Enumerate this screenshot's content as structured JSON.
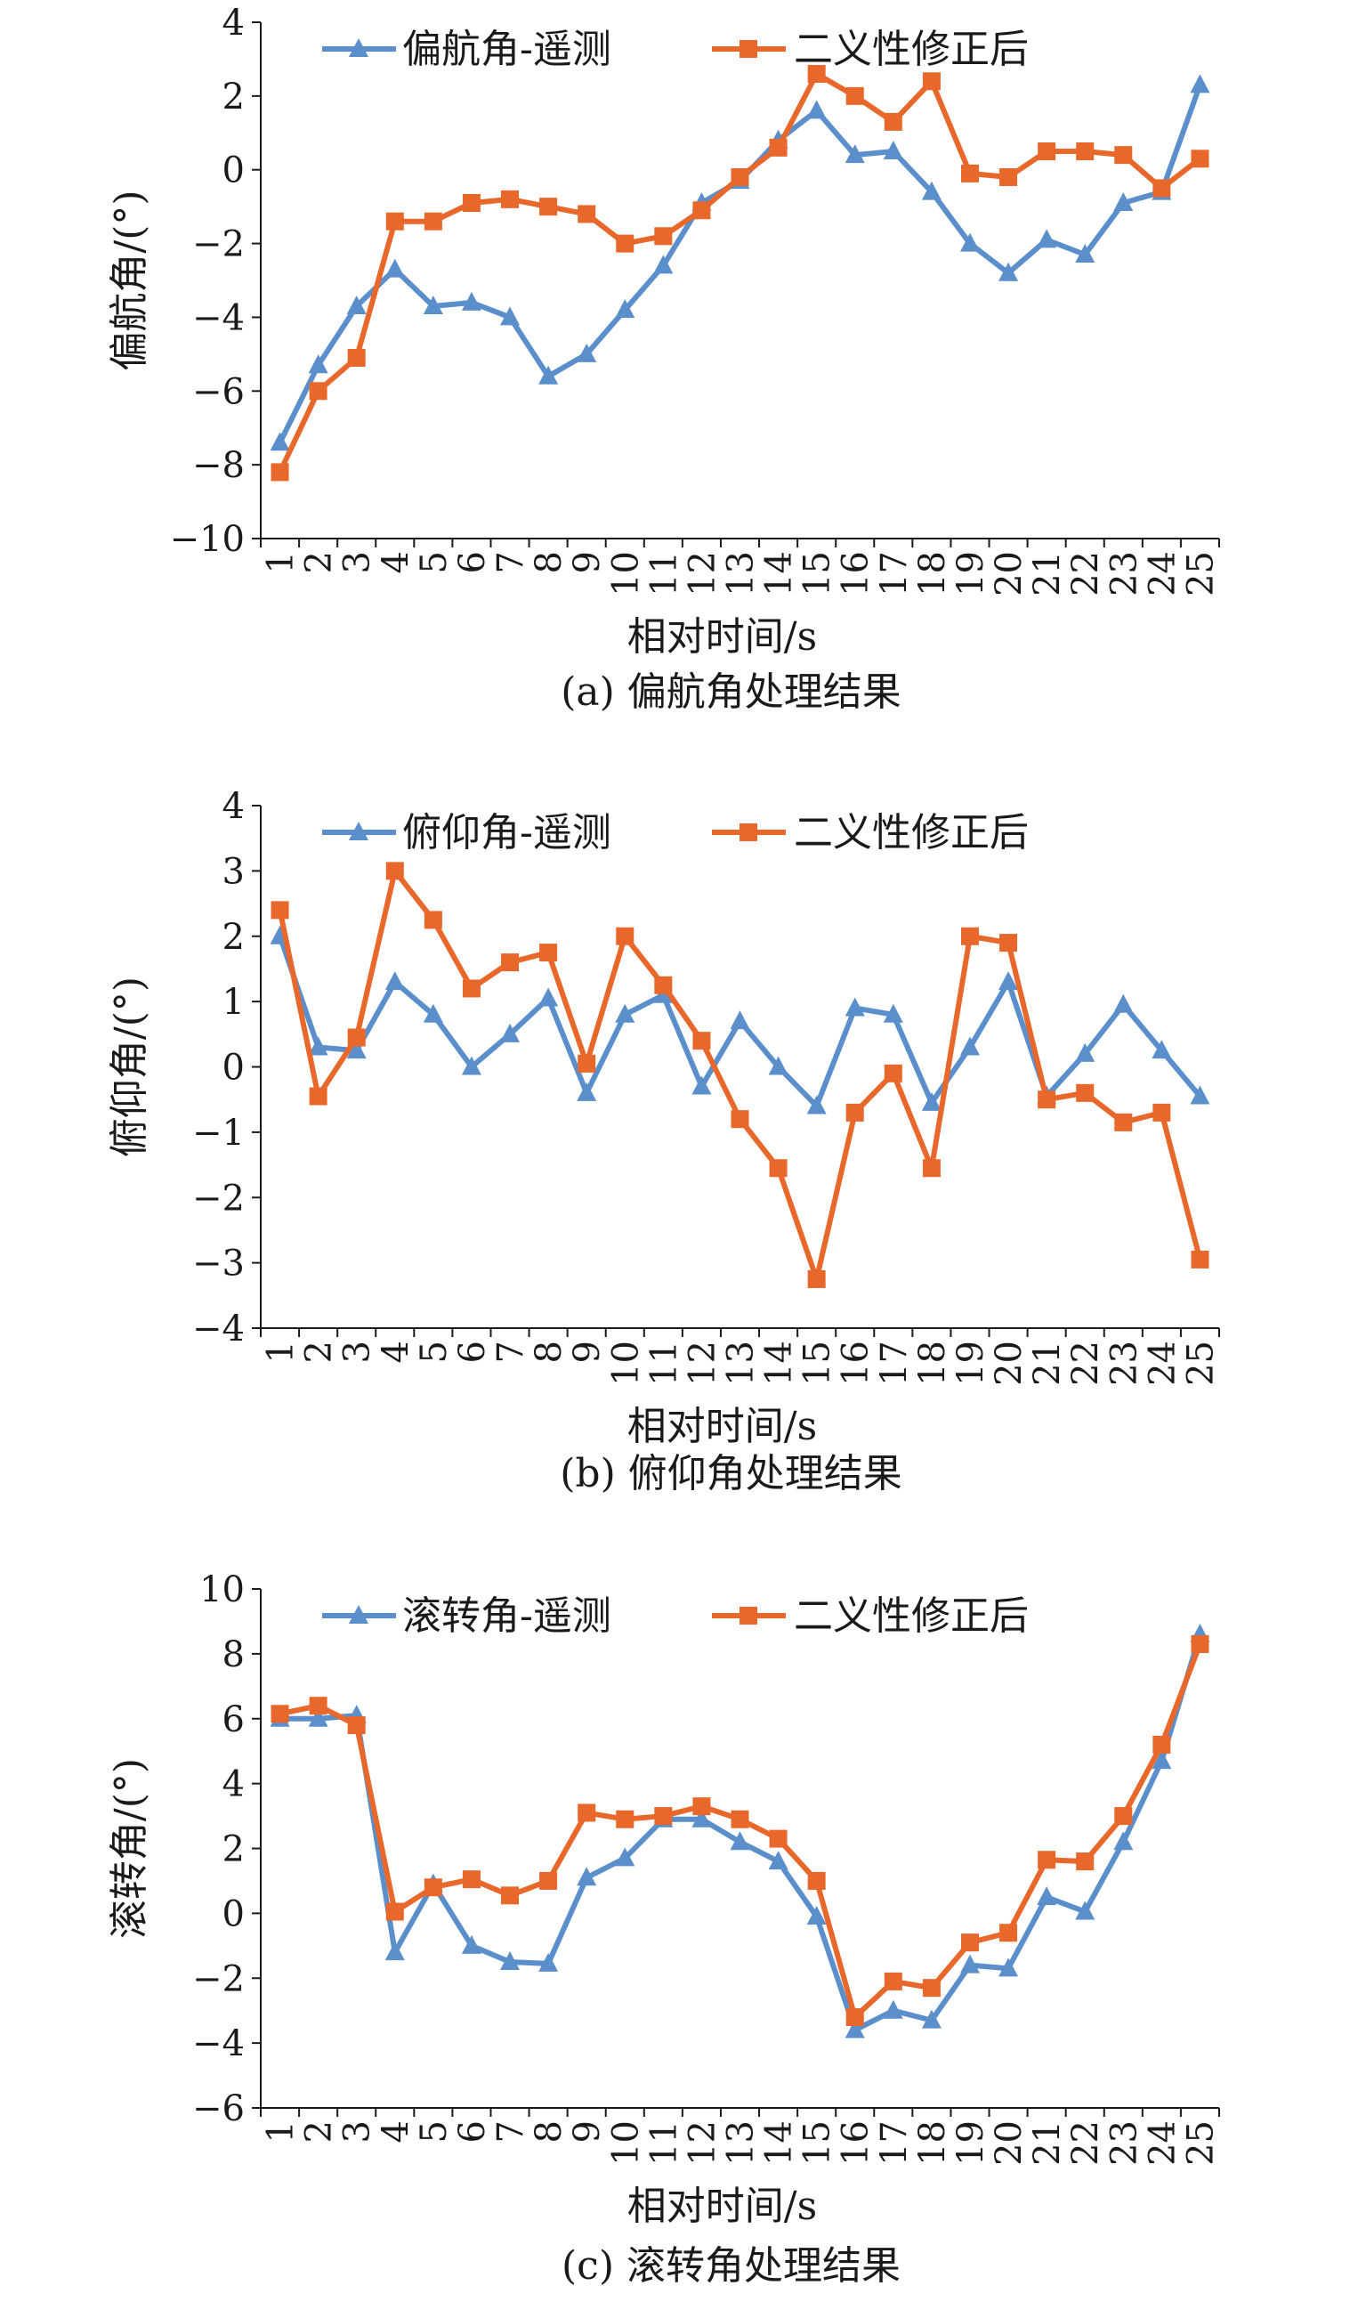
{
  "colors": {
    "telemetry": "#5b8fcb",
    "corrected": "#e8672a",
    "axis": "#1a1a1a"
  },
  "chart_data": [
    {
      "type": "line",
      "caption": "(a) 偏航角处理结果",
      "xlabel": "相对时间/s",
      "ylabel": "偏航角/(°)",
      "ylim": [
        -10,
        4
      ],
      "yticks": [
        "4",
        "2",
        "0",
        "−2",
        "−4",
        "−6",
        "−8",
        "−10"
      ],
      "ytick_values": [
        4,
        2,
        0,
        -2,
        -4,
        -6,
        -8,
        -10
      ],
      "categories": [
        "1",
        "2",
        "3",
        "4",
        "5",
        "6",
        "7",
        "8",
        "9",
        "10",
        "11",
        "12",
        "13",
        "14",
        "15",
        "16",
        "17",
        "18",
        "19",
        "20",
        "21",
        "22",
        "23",
        "24",
        "25"
      ],
      "legend": "top",
      "series": [
        {
          "name": "偏航角-遥测",
          "marker": "triangle",
          "values": [
            -7.4,
            -5.3,
            -3.7,
            -2.7,
            -3.7,
            -3.6,
            -4.0,
            -5.6,
            -5.0,
            -3.8,
            -2.6,
            -0.9,
            -0.3,
            0.8,
            1.6,
            0.4,
            0.5,
            -0.6,
            -2.0,
            -2.8,
            -1.9,
            -2.3,
            -0.9,
            -0.6,
            2.3
          ]
        },
        {
          "name": "二义性修正后",
          "marker": "square",
          "values": [
            -8.2,
            -6.0,
            -5.1,
            -1.4,
            -1.4,
            -0.9,
            -0.8,
            -1.0,
            -1.2,
            -2.0,
            -1.8,
            -1.1,
            -0.2,
            0.6,
            2.6,
            2.0,
            1.3,
            2.4,
            -0.1,
            -0.2,
            0.5,
            0.5,
            0.4,
            -0.5,
            0.3
          ]
        }
      ]
    },
    {
      "type": "line",
      "caption": "(b) 俯仰角处理结果",
      "xlabel": "相对时间/s",
      "ylabel": "俯仰角/(°)",
      "ylim": [
        -4,
        4
      ],
      "yticks": [
        "4",
        "3",
        "2",
        "1",
        "0",
        "−1",
        "−2",
        "−3",
        "−4"
      ],
      "ytick_values": [
        4,
        3,
        2,
        1,
        0,
        -1,
        -2,
        -3,
        -4
      ],
      "categories": [
        "1",
        "2",
        "3",
        "4",
        "5",
        "6",
        "7",
        "8",
        "9",
        "10",
        "11",
        "12",
        "13",
        "14",
        "15",
        "16",
        "17",
        "18",
        "19",
        "20",
        "21",
        "22",
        "23",
        "24",
        "25"
      ],
      "legend": "top",
      "series": [
        {
          "name": "俯仰角-遥测",
          "marker": "triangle",
          "values": [
            2.0,
            0.3,
            0.25,
            1.3,
            0.8,
            0.0,
            0.5,
            1.05,
            -0.4,
            0.8,
            1.1,
            -0.3,
            0.7,
            0.0,
            -0.6,
            0.9,
            0.8,
            -0.55,
            0.3,
            1.3,
            -0.45,
            0.2,
            0.95,
            0.25,
            -0.45
          ]
        },
        {
          "name": "二义性修正后",
          "marker": "square",
          "values": [
            2.4,
            -0.45,
            0.45,
            3.0,
            2.25,
            1.2,
            1.6,
            1.75,
            0.05,
            2.0,
            1.25,
            0.4,
            -0.8,
            -1.55,
            -3.25,
            -0.7,
            -0.1,
            -1.55,
            2.0,
            1.9,
            -0.5,
            -0.4,
            -0.85,
            -0.7,
            -2.95
          ]
        }
      ]
    },
    {
      "type": "line",
      "caption": "(c) 滚转角处理结果",
      "xlabel": "相对时间/s",
      "ylabel": "滚转角/(°)",
      "ylim": [
        -6,
        10
      ],
      "yticks": [
        "10",
        "8",
        "6",
        "4",
        "2",
        "0",
        "−2",
        "−4",
        "−6"
      ],
      "ytick_values": [
        10,
        8,
        6,
        4,
        2,
        0,
        -2,
        -4,
        -6
      ],
      "categories": [
        "1",
        "2",
        "3",
        "4",
        "5",
        "6",
        "7",
        "8",
        "9",
        "10",
        "11",
        "12",
        "13",
        "14",
        "15",
        "16",
        "17",
        "18",
        "19",
        "20",
        "21",
        "22",
        "23",
        "24",
        "25"
      ],
      "legend": "top",
      "series": [
        {
          "name": "滚转角-遥测",
          "marker": "triangle",
          "values": [
            6.0,
            6.0,
            6.1,
            -1.2,
            0.9,
            -1.0,
            -1.5,
            -1.55,
            1.1,
            1.7,
            2.9,
            2.9,
            2.2,
            1.6,
            -0.1,
            -3.6,
            -3.0,
            -3.3,
            -1.6,
            -1.7,
            0.5,
            0.05,
            2.2,
            4.7,
            8.6
          ]
        },
        {
          "name": "二义性修正后",
          "marker": "square",
          "values": [
            6.15,
            6.4,
            5.8,
            0.05,
            0.8,
            1.05,
            0.55,
            1.0,
            3.1,
            2.9,
            3.0,
            3.3,
            2.9,
            2.3,
            1.0,
            -3.2,
            -2.1,
            -2.3,
            -0.9,
            -0.6,
            1.65,
            1.6,
            3.0,
            5.2,
            8.3
          ]
        }
      ]
    }
  ]
}
